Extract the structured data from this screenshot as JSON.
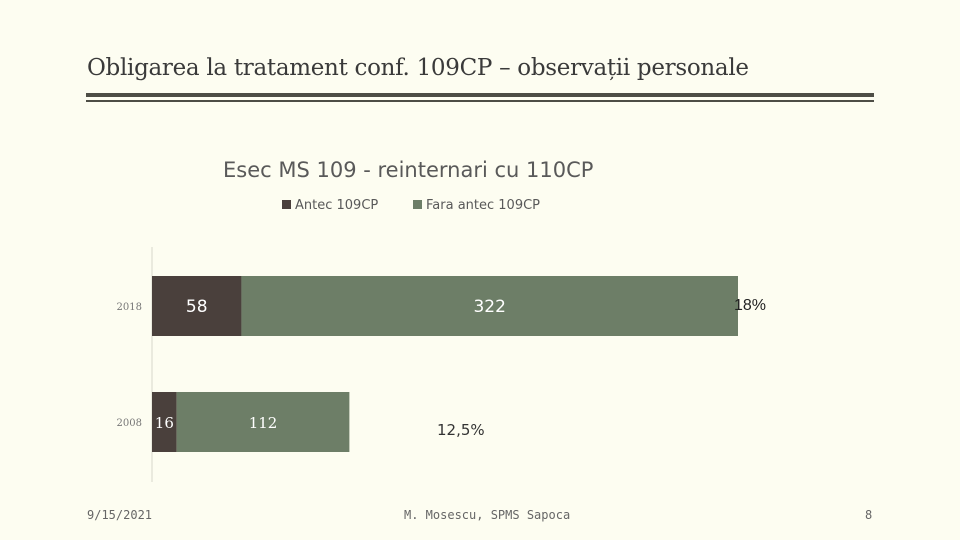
{
  "slide": {
    "title": "Obligarea la tratament conf. 109CP – observații personale"
  },
  "chart_data": {
    "type": "bar",
    "orientation": "horizontal",
    "stacked": true,
    "title": "Esec MS 109 - reinternari cu 110CP",
    "categories": [
      "2018",
      "2008"
    ],
    "series": [
      {
        "name": "Antec 109CP",
        "values": [
          58,
          16
        ],
        "color": "#4a403c"
      },
      {
        "name": "Fara antec 109CP",
        "values": [
          322,
          112
        ],
        "color": "#6d7e67"
      }
    ],
    "annotations": [
      "18%",
      "12,5%"
    ],
    "legend_position": "top",
    "grid": false,
    "xlim": [
      0,
      380
    ]
  },
  "footer": {
    "date": "9/15/2021",
    "author": "M. Mosescu, SPMS Sapoca",
    "page": "8"
  }
}
